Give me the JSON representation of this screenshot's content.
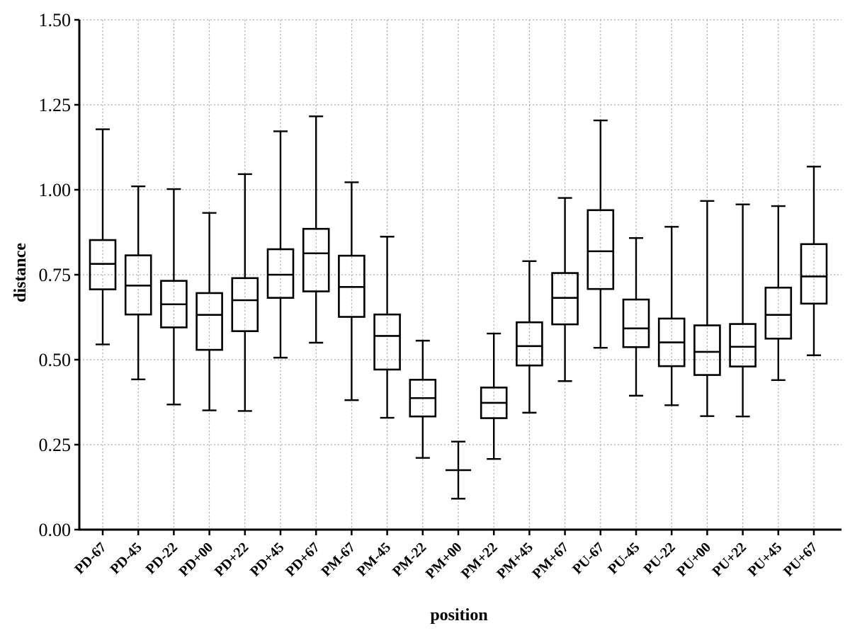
{
  "chart_data": {
    "type": "box",
    "title": "",
    "xlabel": "position",
    "ylabel": "distance",
    "ylim": [
      0,
      1.5
    ],
    "yticks": [
      "0.00",
      "0.25",
      "0.50",
      "0.75",
      "1.00",
      "1.25",
      "1.50"
    ],
    "ytick_values": [
      0,
      0.25,
      0.5,
      0.75,
      1.0,
      1.25,
      1.5
    ],
    "grid": true,
    "categories": [
      "PD-67",
      "PD-45",
      "PD-22",
      "PD+00",
      "PD+22",
      "PD+45",
      "PD+67",
      "PM-67",
      "PM-45",
      "PM-22",
      "PM+00",
      "PM+22",
      "PM+45",
      "PM+67",
      "PU-67",
      "PU-45",
      "PU-22",
      "PU+00",
      "PU+22",
      "PU+45",
      "PU+67"
    ],
    "boxes": [
      {
        "min": 0.545,
        "q1": 0.707,
        "median": 0.782,
        "q3": 0.852,
        "max": 1.178
      },
      {
        "min": 0.442,
        "q1": 0.633,
        "median": 0.718,
        "q3": 0.807,
        "max": 1.01
      },
      {
        "min": 0.368,
        "q1": 0.595,
        "median": 0.663,
        "q3": 0.732,
        "max": 1.002
      },
      {
        "min": 0.351,
        "q1": 0.529,
        "median": 0.632,
        "q3": 0.696,
        "max": 0.932
      },
      {
        "min": 0.349,
        "q1": 0.584,
        "median": 0.675,
        "q3": 0.74,
        "max": 1.046
      },
      {
        "min": 0.506,
        "q1": 0.682,
        "median": 0.75,
        "q3": 0.825,
        "max": 1.172
      },
      {
        "min": 0.55,
        "q1": 0.701,
        "median": 0.813,
        "q3": 0.885,
        "max": 1.216
      },
      {
        "min": 0.381,
        "q1": 0.626,
        "median": 0.714,
        "q3": 0.806,
        "max": 1.022
      },
      {
        "min": 0.329,
        "q1": 0.471,
        "median": 0.57,
        "q3": 0.633,
        "max": 0.862
      },
      {
        "min": 0.211,
        "q1": 0.333,
        "median": 0.387,
        "q3": 0.441,
        "max": 0.556
      },
      {
        "min": 0.091,
        "q1": 0.175,
        "median": 0.175,
        "q3": 0.175,
        "max": 0.259
      },
      {
        "min": 0.208,
        "q1": 0.328,
        "median": 0.373,
        "q3": 0.418,
        "max": 0.577
      },
      {
        "min": 0.344,
        "q1": 0.483,
        "median": 0.54,
        "q3": 0.61,
        "max": 0.79
      },
      {
        "min": 0.437,
        "q1": 0.604,
        "median": 0.682,
        "q3": 0.755,
        "max": 0.976
      },
      {
        "min": 0.535,
        "q1": 0.708,
        "median": 0.819,
        "q3": 0.94,
        "max": 1.204
      },
      {
        "min": 0.394,
        "q1": 0.537,
        "median": 0.592,
        "q3": 0.677,
        "max": 0.858
      },
      {
        "min": 0.366,
        "q1": 0.481,
        "median": 0.551,
        "q3": 0.621,
        "max": 0.891
      },
      {
        "min": 0.334,
        "q1": 0.455,
        "median": 0.523,
        "q3": 0.601,
        "max": 0.967
      },
      {
        "min": 0.333,
        "q1": 0.48,
        "median": 0.538,
        "q3": 0.605,
        "max": 0.957
      },
      {
        "min": 0.44,
        "q1": 0.562,
        "median": 0.632,
        "q3": 0.712,
        "max": 0.952
      },
      {
        "min": 0.513,
        "q1": 0.665,
        "median": 0.745,
        "q3": 0.84,
        "max": 1.068
      }
    ],
    "colors": {
      "stroke": "#000000",
      "grid": "#9a9a9a",
      "background": "#ffffff"
    }
  }
}
